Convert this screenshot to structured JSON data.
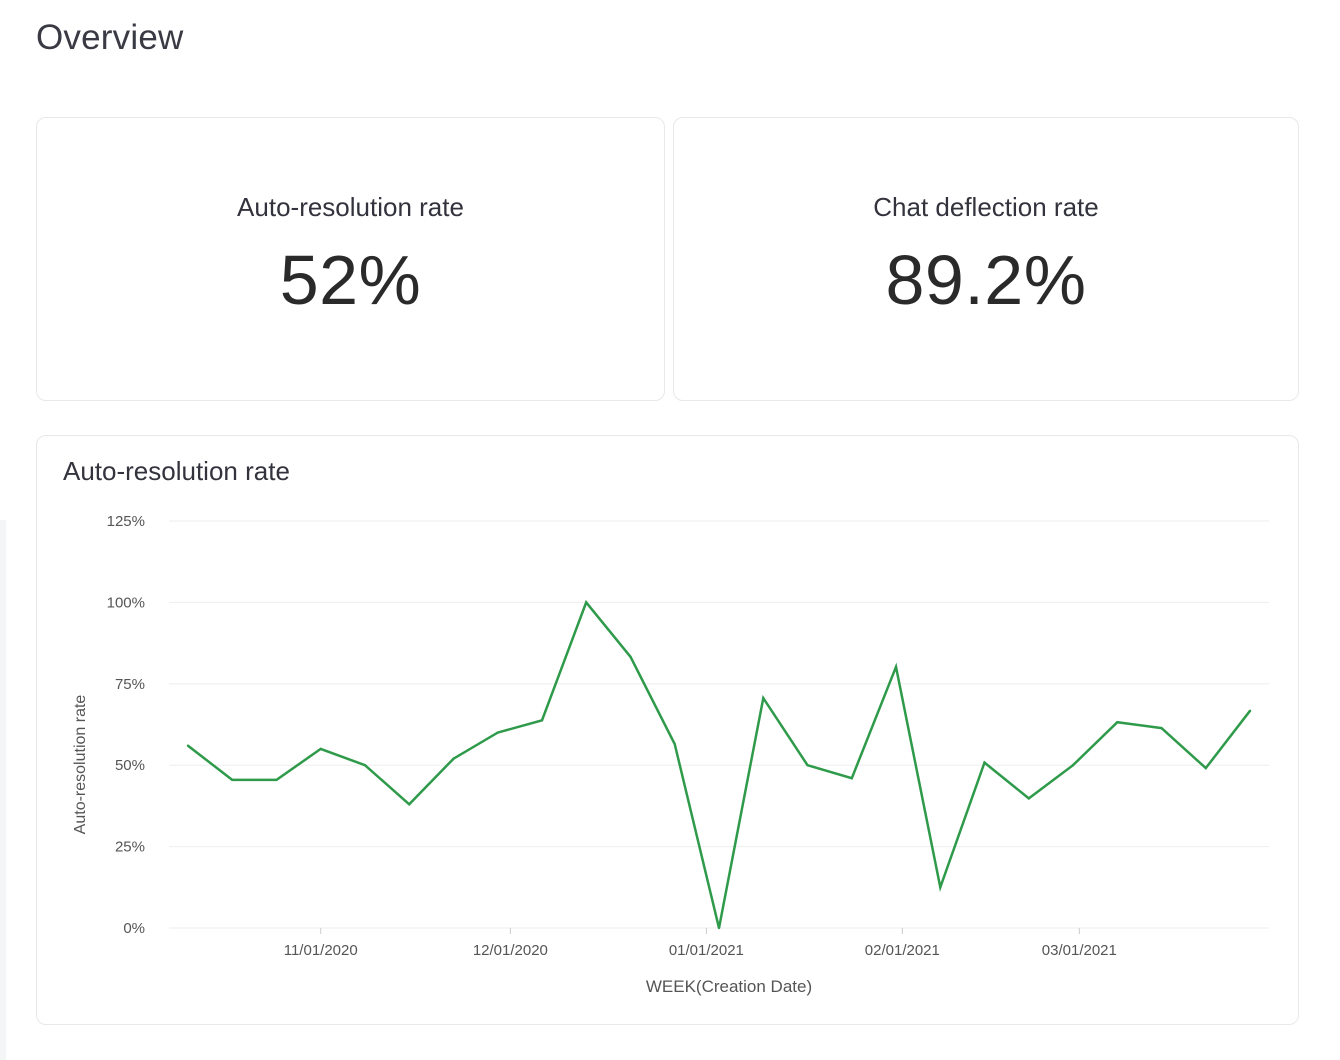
{
  "page": {
    "title": "Overview"
  },
  "kpis": [
    {
      "label": "Auto-resolution rate",
      "value": "52%"
    },
    {
      "label": "Chat deflection rate",
      "value": "89.2%"
    }
  ],
  "chart_card": {
    "title": "Auto-resolution rate"
  },
  "colors": {
    "line": "#2e9a4a",
    "grid": "#eeeeee",
    "axis_text": "#555555"
  },
  "chart_data": {
    "type": "line",
    "title": "Auto-resolution rate",
    "xlabel": "WEEK(Creation Date)",
    "ylabel": "Auto-resolution rate",
    "ylim": [
      0,
      125
    ],
    "y_ticks": [
      0,
      25,
      50,
      75,
      100,
      125
    ],
    "y_tick_labels": [
      "0%",
      "25%",
      "50%",
      "75%",
      "100%",
      "125%"
    ],
    "x_tick_labels": [
      {
        "date": "2020-11-01",
        "label": "11/01/2020"
      },
      {
        "date": "2020-12-01",
        "label": "12/01/2020"
      },
      {
        "date": "2021-01-01",
        "label": "01/01/2021"
      },
      {
        "date": "2021-02-01",
        "label": "02/01/2021"
      },
      {
        "date": "2021-03-01",
        "label": "03/01/2021"
      }
    ],
    "xlim": [
      "2020-10-08",
      "2021-03-31"
    ],
    "grid": true,
    "series": [
      {
        "x": [
          "2020-10-11",
          "2020-10-18",
          "2020-10-25",
          "2020-11-01",
          "2020-11-08",
          "2020-11-15",
          "2020-11-22",
          "2020-11-29",
          "2020-12-06",
          "2020-12-13",
          "2020-12-20",
          "2020-12-27",
          "2021-01-03",
          "2021-01-10",
          "2021-01-17",
          "2021-01-24",
          "2021-01-31",
          "2021-02-07",
          "2021-02-14",
          "2021-02-21",
          "2021-02-28",
          "2021-03-07",
          "2021-03-14",
          "2021-03-21",
          "2021-03-28"
        ],
        "y": [
          56,
          45.5,
          45.5,
          55,
          50,
          38,
          52,
          60,
          63.8,
          100,
          83.3,
          56.5,
          0,
          70.6,
          50,
          46,
          80.2,
          12.5,
          50.8,
          39.8,
          50,
          63.2,
          61.4,
          49.1,
          66.7
        ]
      }
    ]
  }
}
